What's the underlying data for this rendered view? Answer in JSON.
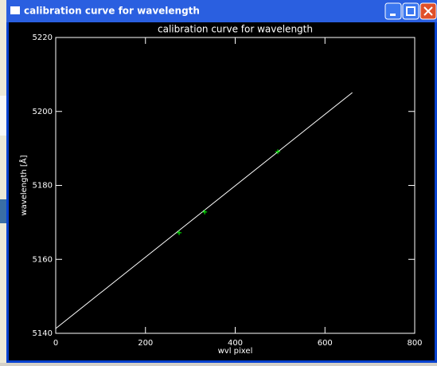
{
  "window": {
    "title": "calibration curve for wavelength"
  },
  "chart_data": {
    "type": "line",
    "title": "calibration curve for wavelength",
    "xlabel": "wvl pixel",
    "ylabel": "wavelength [Å]",
    "xlim": [
      0,
      800
    ],
    "ylim": [
      5140,
      5220
    ],
    "xticks": [
      0,
      200,
      400,
      600,
      800
    ],
    "yticks": [
      5140,
      5160,
      5180,
      5200,
      5220
    ],
    "series": [
      {
        "color": "#ffffff",
        "x": [
          0,
          661
        ],
        "values": [
          5141.3,
          5205.1
        ]
      },
      {
        "color": "#00ff00",
        "marker": "+",
        "x": [
          275,
          332,
          495
        ],
        "values": [
          5167.2,
          5172.8,
          5189.1
        ]
      }
    ]
  }
}
